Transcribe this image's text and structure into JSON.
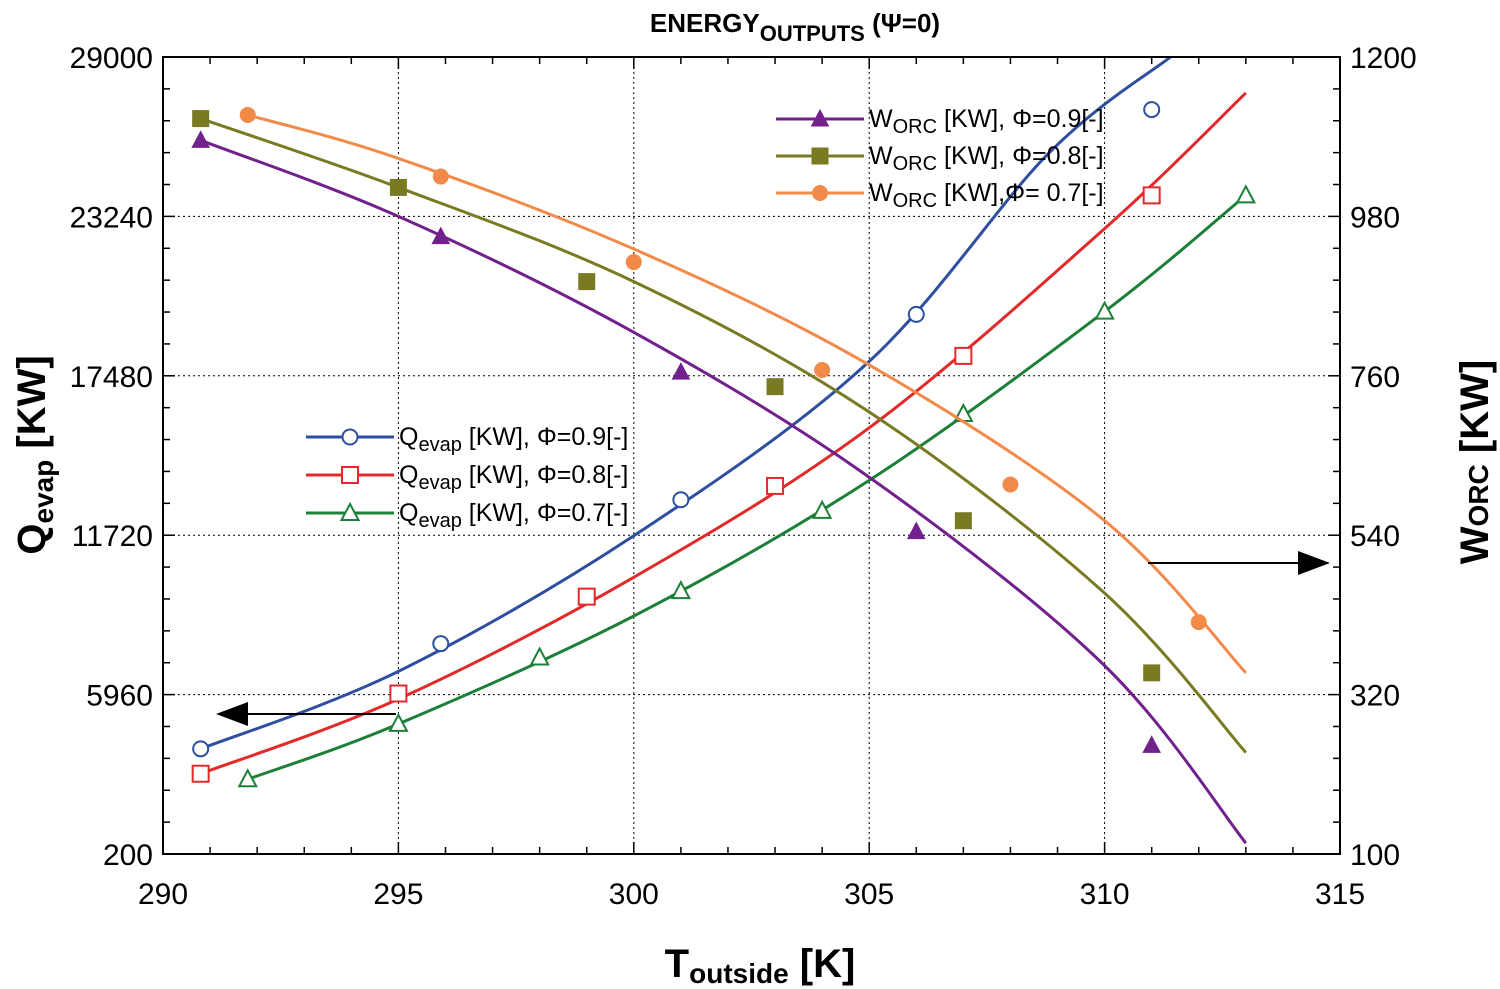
{
  "chart_data": {
    "type": "line",
    "title": {
      "main": "ENERGY",
      "sub": "OUTPUTS",
      "suffix": " (Ψ=0)"
    },
    "xlabel": {
      "main": "T",
      "sub": "outside",
      "unit": "  [K]"
    },
    "ylabel_left": {
      "main": "Q",
      "sub": "evap",
      "unit": " [KW]"
    },
    "ylabel_right": {
      "main": "W",
      "sub": "ORC",
      "unit": " [KW]"
    },
    "xlim": [
      290,
      315
    ],
    "ylim_left": [
      200,
      29000
    ],
    "ylim_right": [
      100,
      1200
    ],
    "x_ticks": [
      "290",
      "295",
      "300",
      "305",
      "310",
      "315"
    ],
    "y_ticks_left": [
      "200",
      "5960",
      "11720",
      "17480",
      "23240",
      "29000"
    ],
    "y_ticks_right": [
      "100",
      "320",
      "540",
      "760",
      "980",
      "1200"
    ],
    "grid": true,
    "series": [
      {
        "name": "Qevap [KW], Φ=0.9[-]",
        "label_main": "Q",
        "label_sub": "evap",
        "label_rest": " [KW], Φ=0.9[-]",
        "axis": "left",
        "color": "#2e4ea0",
        "marker": "circle-open",
        "x": [
          290.8,
          295,
          300,
          305,
          308.8,
          311.4
        ],
        "y": [
          4000,
          6800,
          11700,
          18000,
          25500,
          29000
        ],
        "marker_x": [
          290.8,
          295.9,
          301,
          306,
          311
        ],
        "marker_y": [
          4000,
          7800,
          13000,
          19700,
          27100
        ]
      },
      {
        "name": "Qevap [KW], Φ=0.8[-]",
        "label_main": "Q",
        "label_sub": "evap",
        "label_rest": " [KW], Φ=0.8[-]",
        "axis": "left",
        "color": "#e32a2a",
        "marker": "square-open",
        "x": [
          290.8,
          295,
          300,
          305,
          310,
          313
        ],
        "y": [
          3100,
          5800,
          10200,
          15600,
          22800,
          27700
        ],
        "marker_x": [
          290.8,
          295,
          299,
          303,
          307,
          311
        ],
        "marker_y": [
          3100,
          6000,
          9500,
          13500,
          18200,
          24000
        ]
      },
      {
        "name": "Qevap [KW], Φ=0.7[-]",
        "label_main": "Q",
        "label_sub": "evap",
        "label_rest": " [KW], Φ=0.7[-]",
        "axis": "left",
        "color": "#1d8038",
        "marker": "triangle-open",
        "x": [
          291.8,
          295,
          300,
          305,
          310,
          313
        ],
        "y": [
          2900,
          4900,
          8800,
          13700,
          19800,
          24000
        ],
        "marker_x": [
          291.8,
          295,
          298,
          301,
          304,
          307,
          310,
          313
        ],
        "marker_y": [
          2900,
          4900,
          7300,
          9700,
          12600,
          16100,
          19800,
          24000
        ]
      },
      {
        "name": "WORC [KW], Φ=0.9[-]",
        "label_main": "W",
        "label_sub": "ORC",
        "label_rest": " [KW], Φ=0.9[-]",
        "axis": "right",
        "color": "#72208c",
        "marker": "triangle-filled",
        "x": [
          290.8,
          295,
          300,
          305,
          310,
          313
        ],
        "y": [
          1085,
          980,
          820,
          620,
          360,
          115
        ],
        "marker_x": [
          290.8,
          295.9,
          301,
          306,
          311
        ],
        "marker_y": [
          1085,
          952,
          765,
          545,
          250
        ]
      },
      {
        "name": "WORC [KW], Φ=0.8[-]",
        "label_main": "W",
        "label_sub": "ORC",
        "label_rest": " [KW], Φ=0.8[-]",
        "axis": "right",
        "color": "#7a7a22",
        "marker": "square-filled",
        "x": [
          290.8,
          295,
          300,
          305,
          310,
          313
        ],
        "y": [
          1115,
          1020,
          890,
          710,
          460,
          240
        ],
        "marker_x": [
          290.8,
          295,
          299,
          303,
          307,
          311
        ],
        "marker_y": [
          1115,
          1020,
          890,
          745,
          560,
          350
        ]
      },
      {
        "name": "WORC [KW],Φ= 0.7[-]",
        "label_main": "W",
        "label_sub": "ORC",
        "label_rest": " [KW],Φ= 0.7[-]",
        "axis": "right",
        "color": "#f28a4a",
        "marker": "circle-filled",
        "x": [
          291.8,
          295,
          300,
          305,
          310,
          313
        ],
        "y": [
          1120,
          1060,
          935,
          775,
          560,
          350
        ],
        "marker_x": [
          291.8,
          295.9,
          300,
          304,
          308,
          312
        ],
        "marker_y": [
          1120,
          1035,
          917,
          768,
          610,
          420
        ]
      }
    ],
    "annotations": [
      "arrow pointing left toward Qevap axis",
      "arrow pointing right toward WORC axis"
    ]
  }
}
